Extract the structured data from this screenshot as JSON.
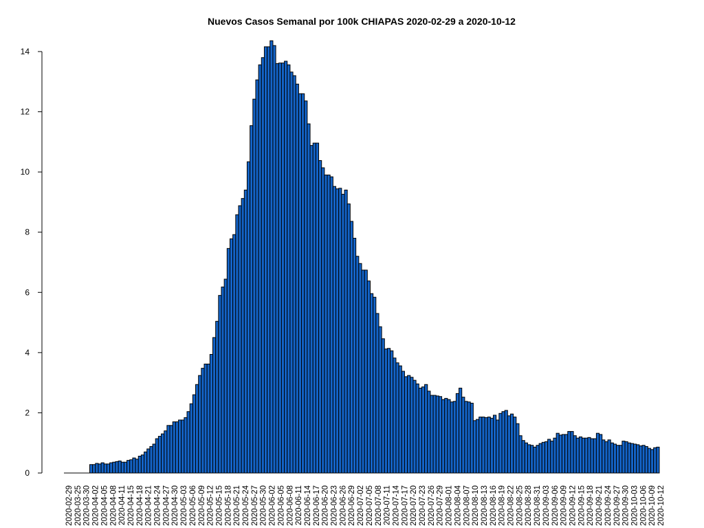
{
  "chart_data": {
    "type": "bar",
    "title": "Nuevos Casos Semanal por 100k CHIAPAS 2020-02-29 a 2020-10-12",
    "xlabel": "",
    "ylabel": "",
    "ylim": [
      0,
      14.4
    ],
    "yticks": [
      0,
      2,
      4,
      6,
      8,
      10,
      12,
      14
    ],
    "xtick_labels": [
      "2020-02-29",
      "2020-03-25",
      "2020-03-30",
      "2020-04-02",
      "2020-04-05",
      "2020-04-08",
      "2020-04-11",
      "2020-04-15",
      "2020-04-18",
      "2020-04-21",
      "2020-04-24",
      "2020-04-27",
      "2020-04-30",
      "2020-05-03",
      "2020-05-06",
      "2020-05-09",
      "2020-05-12",
      "2020-05-15",
      "2020-05-18",
      "2020-05-21",
      "2020-05-24",
      "2020-05-27",
      "2020-05-30",
      "2020-06-02",
      "2020-06-05",
      "2020-06-08",
      "2020-06-11",
      "2020-06-14",
      "2020-06-17",
      "2020-06-20",
      "2020-06-23",
      "2020-06-26",
      "2020-06-29",
      "2020-07-02",
      "2020-07-05",
      "2020-07-08",
      "2020-07-11",
      "2020-07-14",
      "2020-07-17",
      "2020-07-20",
      "2020-07-23",
      "2020-07-26",
      "2020-07-29",
      "2020-08-01",
      "2020-08-04",
      "2020-08-07",
      "2020-08-10",
      "2020-08-13",
      "2020-08-16",
      "2020-08-19",
      "2020-08-22",
      "2020-08-25",
      "2020-08-28",
      "2020-08-31",
      "2020-09-03",
      "2020-09-06",
      "2020-09-09",
      "2020-09-12",
      "2020-09-15",
      "2020-09-18",
      "2020-09-21",
      "2020-09-24",
      "2020-09-27",
      "2020-09-30",
      "2020-10-03",
      "2020-10-06",
      "2020-10-09",
      "2020-10-12"
    ],
    "bar_color": "#1464c8",
    "edge_color": "#000000",
    "values": [
      0,
      0,
      0,
      0,
      0,
      0,
      0,
      0,
      0,
      0.28,
      0.28,
      0.32,
      0.3,
      0.34,
      0.3,
      0.3,
      0.34,
      0.36,
      0.38,
      0.4,
      0.36,
      0.36,
      0.42,
      0.44,
      0.5,
      0.46,
      0.56,
      0.6,
      0.7,
      0.8,
      0.88,
      0.96,
      1.14,
      1.22,
      1.3,
      1.4,
      1.58,
      1.58,
      1.7,
      1.7,
      1.76,
      1.76,
      1.84,
      2.04,
      2.3,
      2.6,
      2.94,
      3.24,
      3.48,
      3.62,
      3.62,
      3.94,
      4.5,
      5.04,
      5.9,
      6.18,
      6.44,
      7.46,
      7.78,
      7.92,
      8.58,
      8.88,
      9.12,
      9.4,
      10.34,
      11.54,
      12.42,
      13.06,
      13.56,
      13.8,
      14.16,
      14.16,
      14.36,
      14.2,
      13.6,
      13.62,
      13.62,
      13.68,
      13.56,
      13.32,
      13.2,
      12.92,
      12.6,
      12.6,
      12.36,
      11.6,
      10.88,
      10.96,
      10.96,
      10.38,
      10.14,
      9.9,
      9.9,
      9.84,
      9.52,
      9.44,
      9.46,
      9.26,
      9.4,
      8.94,
      8.36,
      7.8,
      7.2,
      6.96,
      6.74,
      6.74,
      6.38,
      5.96,
      5.84,
      5.3,
      4.86,
      4.46,
      4.12,
      4.14,
      4.06,
      3.82,
      3.66,
      3.56,
      3.38,
      3.2,
      3.24,
      3.18,
      3.08,
      2.96,
      2.82,
      2.86,
      2.94,
      2.72,
      2.58,
      2.58,
      2.56,
      2.54,
      2.44,
      2.48,
      2.44,
      2.36,
      2.38,
      2.64,
      2.82,
      2.52,
      2.38,
      2.36,
      2.32,
      1.74,
      1.78,
      1.86,
      1.86,
      1.84,
      1.86,
      1.82,
      1.92,
      1.76,
      1.98,
      2.04,
      2.08,
      1.9,
      1.96,
      1.86,
      1.64,
      1.24,
      1.08,
      1.0,
      0.94,
      0.92,
      0.86,
      0.92,
      0.98,
      1.02,
      1.04,
      1.12,
      1.06,
      1.16,
      1.32,
      1.26,
      1.28,
      1.28,
      1.38,
      1.38,
      1.24,
      1.16,
      1.2,
      1.16,
      1.16,
      1.18,
      1.14,
      1.14,
      1.32,
      1.28,
      1.1,
      1.04,
      1.1,
      1.0,
      0.96,
      0.92,
      0.92,
      1.06,
      1.04,
      1.0,
      0.98,
      0.96,
      0.94,
      0.9,
      0.92,
      0.88,
      0.82,
      0.78,
      0.84,
      0.86
    ]
  }
}
